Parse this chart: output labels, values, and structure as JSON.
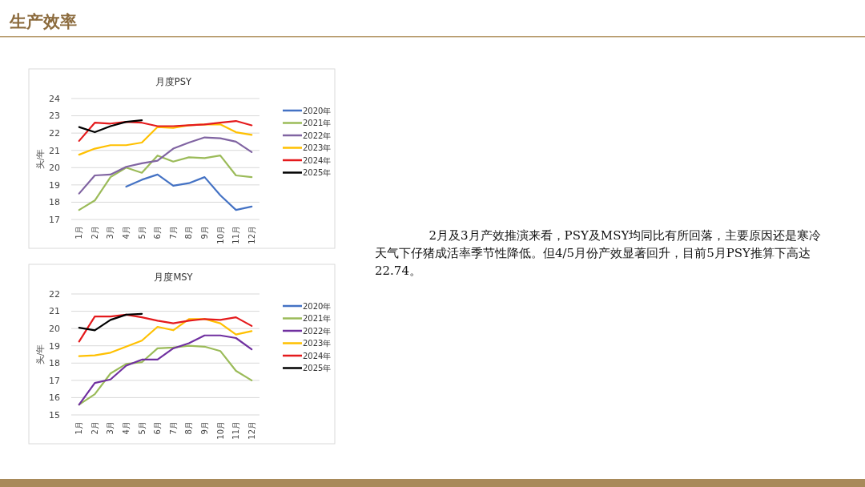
{
  "chart_data": [
    {
      "type": "line",
      "title": "月度PSY",
      "ylabel": "头/年",
      "categories": [
        "1月",
        "2月",
        "3月",
        "4月",
        "5月",
        "6月",
        "7月",
        "8月",
        "9月",
        "10月",
        "11月",
        "12月"
      ],
      "ylim": [
        17,
        24
      ],
      "yticks": [
        17,
        18,
        19,
        20,
        21,
        22,
        23,
        24
      ],
      "grid": "y",
      "legend": "right",
      "series": [
        {
          "name": "2020年",
          "color": "#4472c4",
          "values": [
            null,
            null,
            null,
            18.9,
            19.3,
            19.6,
            18.95,
            19.1,
            19.45,
            18.4,
            17.55,
            17.75
          ]
        },
        {
          "name": "2021年",
          "color": "#9bbb59",
          "values": [
            17.55,
            18.1,
            19.45,
            20.0,
            19.7,
            20.7,
            20.35,
            20.6,
            20.55,
            20.7,
            19.55,
            19.45
          ]
        },
        {
          "name": "2022年",
          "color": "#8064a2",
          "values": [
            18.5,
            19.55,
            19.6,
            20.05,
            20.25,
            20.4,
            21.1,
            21.45,
            21.75,
            21.7,
            21.5,
            20.9
          ]
        },
        {
          "name": "2023年",
          "color": "#ffc000",
          "values": [
            20.75,
            21.1,
            21.3,
            21.3,
            21.45,
            22.35,
            22.3,
            22.45,
            22.5,
            22.5,
            22.05,
            21.9
          ]
        },
        {
          "name": "2024年",
          "color": "#e41a1c",
          "values": [
            21.55,
            22.6,
            22.55,
            22.65,
            22.6,
            22.4,
            22.4,
            22.45,
            22.5,
            22.6,
            22.7,
            22.45
          ]
        },
        {
          "name": "2025年",
          "color": "#000000",
          "values": [
            22.35,
            22.05,
            22.4,
            22.65,
            22.74,
            null,
            null,
            null,
            null,
            null,
            null,
            null
          ]
        }
      ]
    },
    {
      "type": "line",
      "title": "月度MSY",
      "ylabel": "头/年",
      "categories": [
        "1月",
        "2月",
        "3月",
        "4月",
        "5月",
        "6月",
        "7月",
        "8月",
        "9月",
        "10月",
        "11月",
        "12月"
      ],
      "ylim": [
        15,
        22
      ],
      "yticks": [
        15,
        16,
        17,
        18,
        19,
        20,
        21,
        22
      ],
      "grid": "y",
      "legend": "right",
      "series": [
        {
          "name": "2020年",
          "color": "#4472c4",
          "values": [
            null,
            null,
            null,
            null,
            null,
            null,
            null,
            null,
            null,
            null,
            null,
            null
          ]
        },
        {
          "name": "2021年",
          "color": "#9bbb59",
          "values": [
            15.6,
            16.2,
            17.4,
            17.95,
            18.05,
            18.85,
            18.9,
            19.0,
            18.95,
            18.7,
            17.55,
            17.0
          ]
        },
        {
          "name": "2022年",
          "color": "#7030a0",
          "values": [
            15.6,
            16.85,
            17.05,
            17.85,
            18.2,
            18.2,
            18.85,
            19.15,
            19.6,
            19.6,
            19.45,
            18.8
          ]
        },
        {
          "name": "2023年",
          "color": "#ffc000",
          "values": [
            18.4,
            18.45,
            18.6,
            18.95,
            19.3,
            20.1,
            19.9,
            20.55,
            20.55,
            20.3,
            19.65,
            19.85
          ]
        },
        {
          "name": "2024年",
          "color": "#e41a1c",
          "values": [
            19.25,
            20.7,
            20.7,
            20.8,
            20.65,
            20.45,
            20.3,
            20.45,
            20.55,
            20.5,
            20.65,
            20.15
          ]
        },
        {
          "name": "2025年",
          "color": "#000000",
          "values": [
            20.05,
            19.9,
            20.5,
            20.8,
            20.85,
            null,
            null,
            null,
            null,
            null,
            null,
            null
          ]
        }
      ]
    },
    {
      "type": "other",
      "title": "生产效率",
      "annotations": [
        "2月及3月产效推演来看，PSY及MSY均同比有所回落，主要原因还是寒冷天气下仔猪成活率季节性降低。但4/5月份产效显著回升，目前5月PSY推算下高达22.74。"
      ]
    }
  ]
}
